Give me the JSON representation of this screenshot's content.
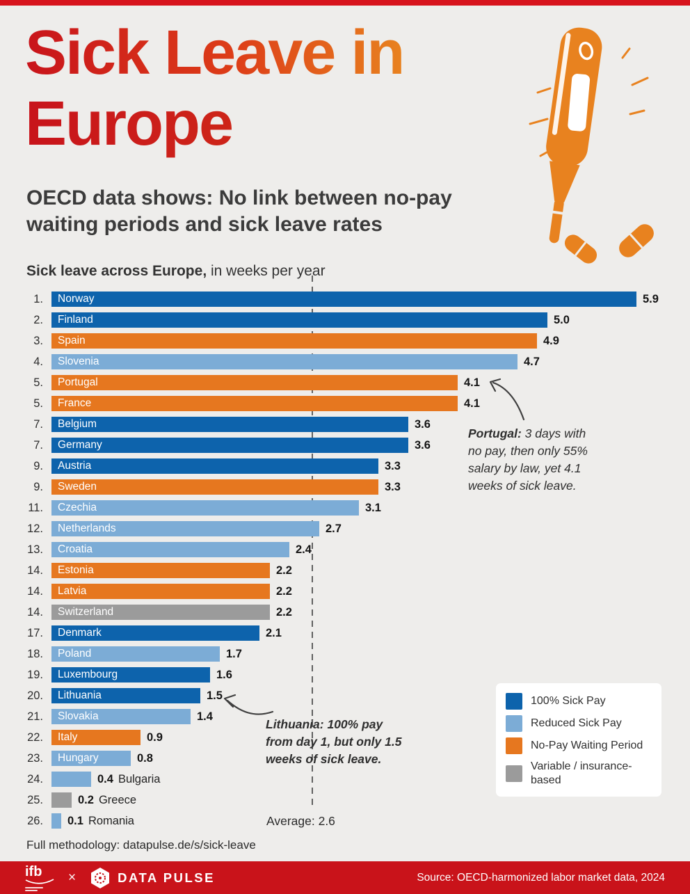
{
  "page": {
    "background": "#eeedeb",
    "top_bar_color": "#d7141d",
    "footer_color": "#c9131a"
  },
  "header": {
    "title_line1": "Sick Leave in",
    "title_line2": "Europe",
    "subtitle_line1": "OECD data shows: No link between no-pay",
    "subtitle_line2": "waiting periods and sick leave rates"
  },
  "chart": {
    "title_bold": "Sick leave across Europe,",
    "title_rest": " in weeks per year",
    "average_label": "Average: 2.6"
  },
  "chart_data": {
    "type": "bar",
    "orientation": "horizontal",
    "title": "Sick leave across Europe, in weeks per year",
    "unit": "weeks per year",
    "xlim": [
      0,
      6.2
    ],
    "average": 2.6,
    "grid": false,
    "legend_position": "bottom-right",
    "colors": {
      "full": "#0d63ac",
      "reduced": "#7cacd6",
      "nopay": "#e6771f",
      "variable": "#9b9b9b"
    },
    "categories": [
      "Norway",
      "Finland",
      "Spain",
      "Slovenia",
      "Portugal",
      "France",
      "Belgium",
      "Germany",
      "Austria",
      "Sweden",
      "Czechia",
      "Netherlands",
      "Croatia",
      "Estonia",
      "Latvia",
      "Switzerland",
      "Denmark",
      "Poland",
      "Luxembourg",
      "Lithuania",
      "Slovakia",
      "Italy",
      "Hungary",
      "Bulgaria",
      "Greece",
      "Romania"
    ],
    "values": [
      5.9,
      5.0,
      4.9,
      4.7,
      4.1,
      4.1,
      3.6,
      3.6,
      3.3,
      3.3,
      3.1,
      2.7,
      2.4,
      2.2,
      2.2,
      2.2,
      2.1,
      1.7,
      1.6,
      1.5,
      1.4,
      0.9,
      0.8,
      0.4,
      0.2,
      0.1
    ],
    "rows": [
      {
        "rank": "1.",
        "country": "Norway",
        "value": 5.9,
        "category": "full"
      },
      {
        "rank": "2.",
        "country": "Finland",
        "value": 5.0,
        "category": "full"
      },
      {
        "rank": "3.",
        "country": "Spain",
        "value": 4.9,
        "category": "nopay"
      },
      {
        "rank": "4.",
        "country": "Slovenia",
        "value": 4.7,
        "category": "reduced"
      },
      {
        "rank": "5.",
        "country": "Portugal",
        "value": 4.1,
        "category": "nopay"
      },
      {
        "rank": "5.",
        "country": "France",
        "value": 4.1,
        "category": "nopay"
      },
      {
        "rank": "7.",
        "country": "Belgium",
        "value": 3.6,
        "category": "full"
      },
      {
        "rank": "7.",
        "country": "Germany",
        "value": 3.6,
        "category": "full"
      },
      {
        "rank": "9.",
        "country": "Austria",
        "value": 3.3,
        "category": "full"
      },
      {
        "rank": "9.",
        "country": "Sweden",
        "value": 3.3,
        "category": "nopay"
      },
      {
        "rank": "11.",
        "country": "Czechia",
        "value": 3.1,
        "category": "reduced"
      },
      {
        "rank": "12.",
        "country": "Netherlands",
        "value": 2.7,
        "category": "reduced"
      },
      {
        "rank": "13.",
        "country": "Croatia",
        "value": 2.4,
        "category": "reduced"
      },
      {
        "rank": "14.",
        "country": "Estonia",
        "value": 2.2,
        "category": "nopay"
      },
      {
        "rank": "14.",
        "country": "Latvia",
        "value": 2.2,
        "category": "nopay"
      },
      {
        "rank": "14.",
        "country": "Switzerland",
        "value": 2.2,
        "category": "variable"
      },
      {
        "rank": "17.",
        "country": "Denmark",
        "value": 2.1,
        "category": "full"
      },
      {
        "rank": "18.",
        "country": "Poland",
        "value": 1.7,
        "category": "reduced"
      },
      {
        "rank": "19.",
        "country": "Luxembourg",
        "value": 1.6,
        "category": "full"
      },
      {
        "rank": "20.",
        "country": "Lithuania",
        "value": 1.5,
        "category": "full"
      },
      {
        "rank": "21.",
        "country": "Slovakia",
        "value": 1.4,
        "category": "reduced"
      },
      {
        "rank": "22.",
        "country": "Italy",
        "value": 0.9,
        "category": "nopay"
      },
      {
        "rank": "23.",
        "country": "Hungary",
        "value": 0.8,
        "category": "reduced"
      },
      {
        "rank": "24.",
        "country": "Bulgaria",
        "value": 0.4,
        "category": "reduced",
        "name_outside": true
      },
      {
        "rank": "25.",
        "country": "Greece",
        "value": 0.2,
        "category": "variable",
        "name_outside": true
      },
      {
        "rank": "26.",
        "country": "Romania",
        "value": 0.1,
        "category": "reduced",
        "name_outside": true
      }
    ]
  },
  "annotations": {
    "portugal": {
      "lead": "Portugal:",
      "body": " 3 days with no pay, then only 55% salary by law, yet 4.1 weeks of sick leave."
    },
    "lithuania": {
      "lead": "Lithuania:",
      "body": " 100% pay from day 1, but only 1.5 weeks of sick leave."
    }
  },
  "legend": {
    "items": [
      {
        "label": "100% Sick Pay",
        "color": "#0d63ac"
      },
      {
        "label": "Reduced Sick Pay",
        "color": "#7cacd6"
      },
      {
        "label": "No-Pay Waiting Period",
        "color": "#e6771f"
      },
      {
        "label": "Variable / insurance-based",
        "color": "#9b9b9b"
      }
    ]
  },
  "footnote": "Full methodology: datapulse.de/s/sick-leave",
  "footer": {
    "ifb_text": "ifb",
    "separator": "×",
    "brand_word1": "DATA",
    "brand_word2": "PULSE",
    "source": "Source: OECD-harmonized labor market data, 2024"
  },
  "illustration": {
    "color": "#e8821f",
    "icons": [
      "thermometer-icon",
      "pills-icon"
    ]
  }
}
